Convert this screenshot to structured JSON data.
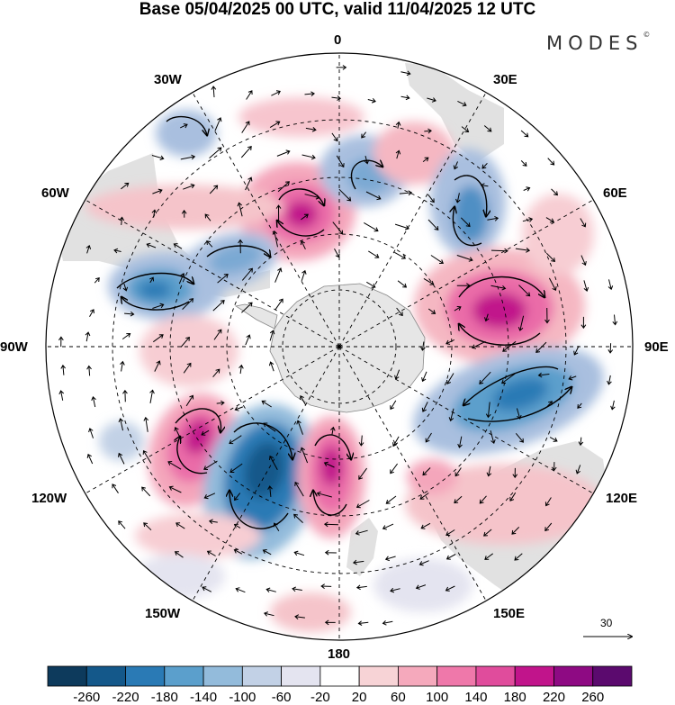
{
  "title": "Base 05/04/2025 00 UTC, valid 11/04/2025 12 UTC",
  "brand": "MODES",
  "brand_mark": "©",
  "longitude_labels": {
    "n0": "0",
    "n30e": "30E",
    "n60e": "60E",
    "n90e": "90E",
    "n120e": "120E",
    "n150e": "150E",
    "n180": "180",
    "n150w": "150W",
    "n120w": "120W",
    "n90w": "90W",
    "n60w": "60W",
    "n30w": "30W"
  },
  "reference_vector": {
    "label": "30"
  },
  "colorbar": {
    "colors": [
      "#0d3a5c",
      "#14588a",
      "#2a7ab5",
      "#5b9fcc",
      "#93bbdb",
      "#c2d1e6",
      "#e4e4f0",
      "#ffffff",
      "#f7d3d6",
      "#f5a9bc",
      "#ef78aa",
      "#e04c9c",
      "#c1148b",
      "#8e0a83",
      "#5b0a6e"
    ],
    "labels": [
      "-260",
      "-220",
      "-180",
      "-140",
      "-100",
      "-60",
      "-20",
      "20",
      "60",
      "100",
      "140",
      "180",
      "220",
      "260"
    ]
  },
  "anomaly_centers": [
    {
      "name": "blue-30w",
      "lon": -25,
      "lat": -45,
      "value": -100
    },
    {
      "name": "pink-0",
      "lon": -20,
      "lat": -55,
      "value": 200
    },
    {
      "name": "blue-0",
      "lon": 5,
      "lat": -45,
      "value": -100
    },
    {
      "name": "blue-45e",
      "lon": 45,
      "lat": -48,
      "value": -160
    },
    {
      "name": "pink-75e",
      "lon": 75,
      "lat": -58,
      "value": 210
    },
    {
      "name": "blue-105e",
      "lon": 110,
      "lat": -55,
      "value": -170
    },
    {
      "name": "blue-75w",
      "lon": -70,
      "lat": -42,
      "value": -160
    },
    {
      "name": "blue-55w",
      "lon": -50,
      "lat": -55,
      "value": -110
    },
    {
      "name": "pink-115w",
      "lon": -135,
      "lat": -48,
      "value": 170
    },
    {
      "name": "blue-150w",
      "lon": -155,
      "lat": -50,
      "value": -230
    },
    {
      "name": "pink-175e",
      "lon": 175,
      "lat": -55,
      "value": 220
    },
    {
      "name": "pink-120e",
      "lon": 135,
      "lat": -40,
      "value": 50
    }
  ]
}
